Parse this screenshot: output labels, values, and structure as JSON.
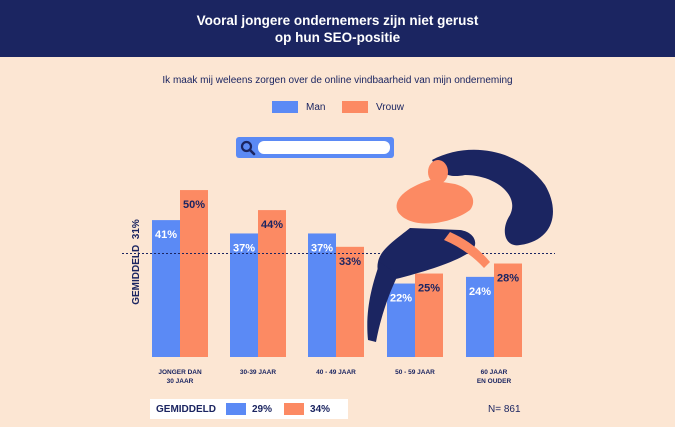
{
  "header": {
    "title_line1": "Vooral jongere ondernemers zijn niet gerust",
    "title_line2": "op hun SEO-positie"
  },
  "chart_data": {
    "type": "bar",
    "subtitle": "Ik maak mij weleens zorgen over de online vindbaarheid van mijn onderneming",
    "categories": [
      [
        "JONGER DAN",
        "30 JAAR"
      ],
      [
        "30-39 JAAR"
      ],
      [
        "40 - 49 JAAR"
      ],
      [
        "50 - 59 JAAR"
      ],
      [
        "60 JAAR",
        "EN OUDER"
      ]
    ],
    "series": [
      {
        "name": "Man",
        "values": [
          41,
          37,
          37,
          22,
          24
        ],
        "labels": [
          "41%",
          "37%",
          "37%",
          "22%",
          "24%"
        ],
        "color": "#5b8af5"
      },
      {
        "name": "Vrouw",
        "values": [
          50,
          44,
          33,
          25,
          28
        ],
        "labels": [
          "50%",
          "44%",
          "33%",
          "25%",
          "28%"
        ],
        "color": "#fc8a63"
      }
    ],
    "average": {
      "value": 31,
      "label": "GEMIDDELD",
      "value_label": "31%"
    },
    "ylim": [
      0,
      62
    ],
    "legend_position": "top-center"
  },
  "footer": {
    "label": "GEMIDDELD",
    "man_value": "29%",
    "vrouw_value": "34%",
    "n": "N= 861"
  },
  "colors": {
    "navy": "#1b2561",
    "man": "#5b8af5",
    "vrouw": "#fc8a63",
    "background": "#fce6d3"
  },
  "decoration": {
    "illustration": "woman-sitting-illustration",
    "search": "search-icon"
  }
}
